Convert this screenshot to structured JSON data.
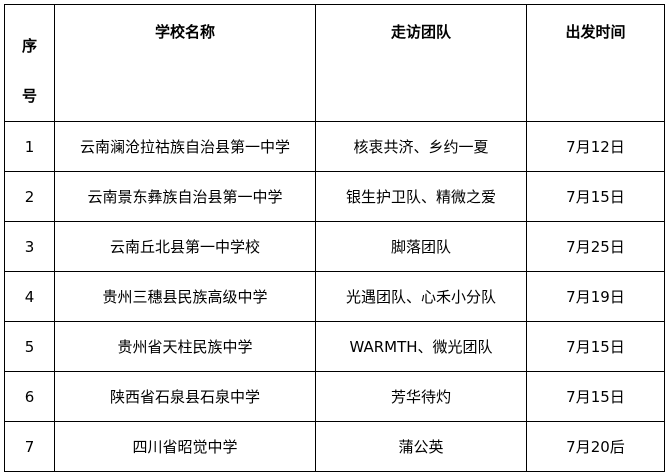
{
  "headers": {
    "seq_1": "序",
    "seq_2": "号",
    "school": "学校名称",
    "team": "走访团队",
    "date": "出发时间"
  },
  "rows": [
    {
      "seq": "1",
      "school": "云南澜沧拉祜族自治县第一中学",
      "team": "核衷共济、乡约一夏",
      "date": "7月12日"
    },
    {
      "seq": "2",
      "school": "云南景东彝族自治县第一中学",
      "team": "银生护卫队、精微之爱",
      "date": "7月15日"
    },
    {
      "seq": "3",
      "school": "云南丘北县第一中学校",
      "team": "脚落团队",
      "date": "7月25日"
    },
    {
      "seq": "4",
      "school": "贵州三穗县民族高级中学",
      "team": "光遇团队、心禾小分队",
      "date": "7月19日"
    },
    {
      "seq": "5",
      "school": "贵州省天柱民族中学",
      "team": "WARMTH、微光团队",
      "date": "7月15日"
    },
    {
      "seq": "6",
      "school": "陕西省石泉县石泉中学",
      "team": "芳华待灼",
      "date": "7月15日"
    },
    {
      "seq": "7",
      "school": "四川省昭觉中学",
      "team": "蒲公英",
      "date": "7月20后"
    }
  ]
}
